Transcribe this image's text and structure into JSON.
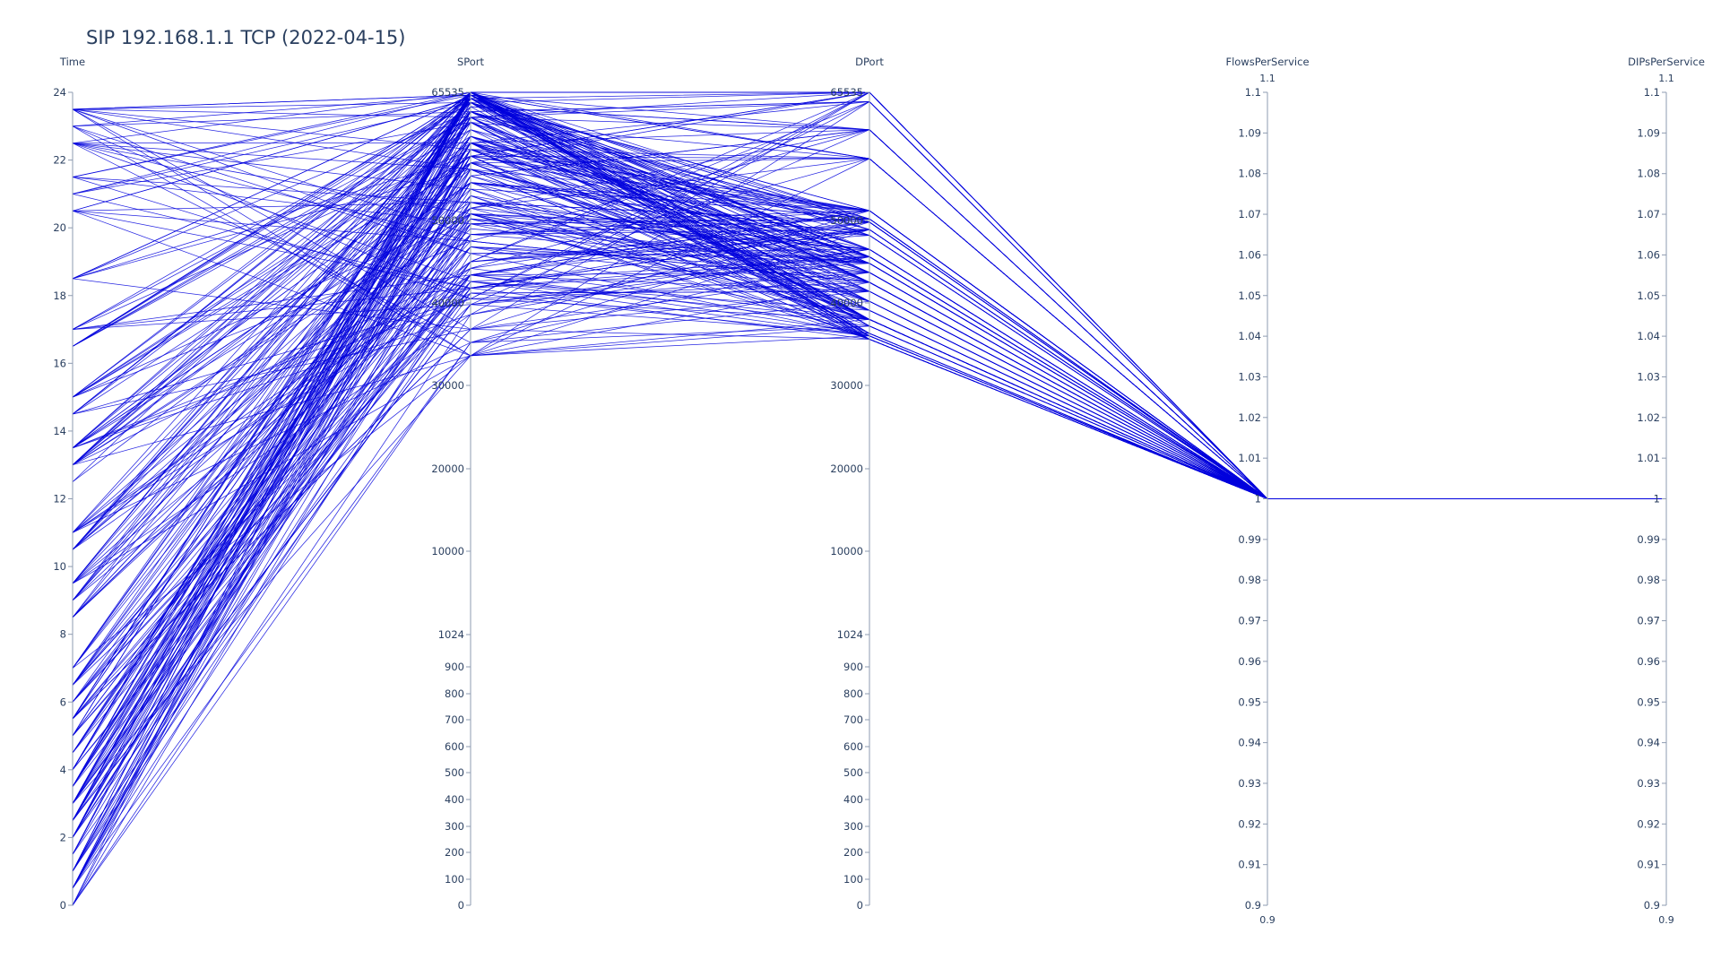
{
  "title": "SIP 192.168.1.1 TCP (2022-04-15)",
  "chart_data": {
    "type": "parallel_coordinates",
    "title": "SIP 192.168.1.1 TCP (2022-04-15)",
    "line_color": "#0000dd",
    "dimensions": [
      {
        "key": "time",
        "label": "Time",
        "range": [
          0,
          24
        ],
        "tick_values": [
          0,
          2,
          4,
          6,
          8,
          10,
          12,
          14,
          16,
          18,
          20,
          22,
          24
        ],
        "tick_labels": [
          "0",
          "2",
          "4",
          "6",
          "8",
          "10",
          "12",
          "14",
          "16",
          "18",
          "20",
          "22",
          "24"
        ]
      },
      {
        "key": "sport",
        "label": "SPort",
        "scale": "piecewise",
        "tick_values": [
          0,
          100,
          200,
          300,
          400,
          500,
          600,
          700,
          800,
          900,
          1024,
          10000,
          20000,
          30000,
          40000,
          50000,
          65535
        ],
        "tick_labels": [
          "0",
          "100",
          "200",
          "300",
          "400",
          "500",
          "600",
          "700",
          "800",
          "900",
          "1024",
          "10000",
          "20000",
          "30000",
          "40000",
          "50000",
          "65535"
        ]
      },
      {
        "key": "dport",
        "label": "DPort",
        "scale": "piecewise",
        "tick_values": [
          0,
          100,
          200,
          300,
          400,
          500,
          600,
          700,
          800,
          900,
          1024,
          10000,
          20000,
          30000,
          40000,
          50000,
          65535
        ],
        "tick_labels": [
          "0",
          "100",
          "200",
          "300",
          "400",
          "500",
          "600",
          "700",
          "800",
          "900",
          "1024",
          "10000",
          "20000",
          "30000",
          "40000",
          "50000",
          "65535"
        ]
      },
      {
        "key": "flows",
        "label": "FlowsPerService",
        "range": [
          0.9,
          1.1
        ],
        "range_labels": [
          "0.9",
          "1.1"
        ],
        "tick_values": [
          0.9,
          0.91,
          0.92,
          0.93,
          0.94,
          0.95,
          0.96,
          0.97,
          0.98,
          0.99,
          1,
          1.01,
          1.02,
          1.03,
          1.04,
          1.05,
          1.06,
          1.07,
          1.08,
          1.09,
          1.1
        ],
        "tick_labels": [
          "0.9",
          "0.91",
          "0.92",
          "0.93",
          "0.94",
          "0.95",
          "0.96",
          "0.97",
          "0.98",
          "0.99",
          "1",
          "1.01",
          "1.02",
          "1.03",
          "1.04",
          "1.05",
          "1.06",
          "1.07",
          "1.08",
          "1.09",
          "1.1"
        ]
      },
      {
        "key": "dips",
        "label": "DIPsPerService",
        "range": [
          0.9,
          1.1
        ],
        "range_labels": [
          "0.9",
          "1.1"
        ],
        "tick_values": [
          0.9,
          0.91,
          0.92,
          0.93,
          0.94,
          0.95,
          0.96,
          0.97,
          0.98,
          0.99,
          1,
          1.01,
          1.02,
          1.03,
          1.04,
          1.05,
          1.06,
          1.07,
          1.08,
          1.09,
          1.1
        ],
        "tick_labels": [
          "0.9",
          "0.91",
          "0.92",
          "0.93",
          "0.94",
          "0.95",
          "0.96",
          "0.97",
          "0.98",
          "0.99",
          "1",
          "1.01",
          "1.02",
          "1.03",
          "1.04",
          "1.05",
          "1.06",
          "1.07",
          "1.08",
          "1.09",
          "1.1"
        ]
      }
    ],
    "sport_values": [
      65535,
      65200,
      64800,
      64300,
      63800,
      63200,
      62500,
      61900,
      61000,
      60200,
      59400,
      58600,
      57800,
      57000,
      56200,
      55400,
      54600,
      53800,
      53000,
      52200,
      51500,
      50800,
      50200,
      49600,
      49000,
      48300,
      47500,
      46800,
      46000,
      45000,
      44200,
      43400,
      42600,
      41800,
      41200,
      40500,
      39800,
      38600,
      36800,
      35200,
      33600
    ],
    "dport_values": [
      65535,
      64400,
      61000,
      57500,
      51200,
      50200,
      49800,
      48900,
      48200,
      46500,
      45600,
      44800,
      43700,
      42500,
      41400,
      40200,
      39100,
      38000,
      37200,
      36300,
      36000,
      35600
    ],
    "time_values": [
      0,
      0.5,
      1,
      1.5,
      2,
      2.5,
      3,
      3.5,
      4,
      4.5,
      5,
      5.5,
      6,
      6.5,
      7,
      8.5,
      9,
      9.5,
      10.5,
      11,
      12.5,
      13,
      13.5,
      14.5,
      15,
      16.5,
      17,
      18.5,
      20.5,
      21,
      21.5,
      22.5,
      23,
      23.5
    ],
    "flows_per_service": 1,
    "dips_per_service": 1
  }
}
